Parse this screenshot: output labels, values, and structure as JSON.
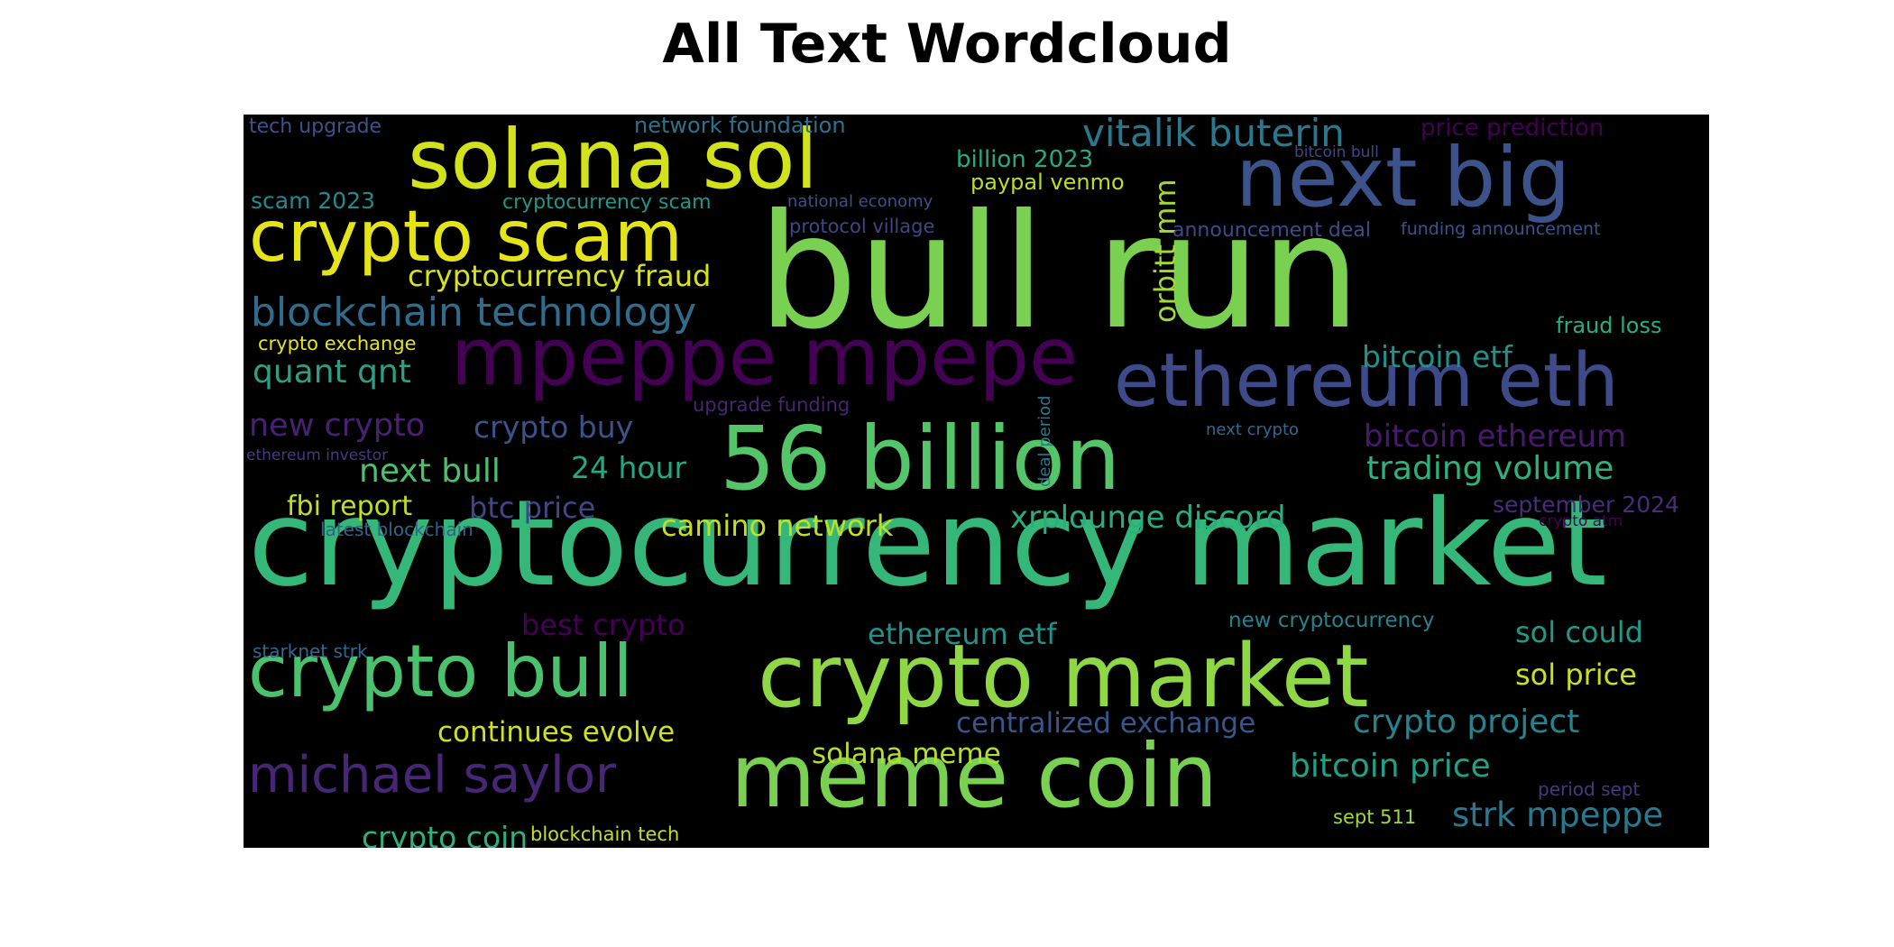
{
  "title": "All Text Wordcloud",
  "chart_data": {
    "type": "wordcloud",
    "title": "All Text Wordcloud",
    "background": "#000000",
    "colormap": "viridis",
    "words": [
      {
        "text": "cryptocurrency market",
        "weight": 100,
        "color": "#35b779"
      },
      {
        "text": "bull run",
        "weight": 96,
        "color": "#7ad151"
      },
      {
        "text": "crypto market",
        "weight": 72,
        "color": "#8fd744"
      },
      {
        "text": "meme coin",
        "weight": 70,
        "color": "#7ad151"
      },
      {
        "text": "56 billion",
        "weight": 68,
        "color": "#54c568"
      },
      {
        "text": "solana sol",
        "weight": 64,
        "color": "#d2e21b"
      },
      {
        "text": "next big",
        "weight": 63,
        "color": "#3b528b"
      },
      {
        "text": "mpeppe mpepe",
        "weight": 62,
        "color": "#440154"
      },
      {
        "text": "ethereum eth",
        "weight": 61,
        "color": "#3e4a89"
      },
      {
        "text": "crypto bull",
        "weight": 58,
        "color": "#4ac16d"
      },
      {
        "text": "crypto scam",
        "weight": 56,
        "color": "#e5e419"
      },
      {
        "text": "michael saylor",
        "weight": 44,
        "color": "#482677"
      },
      {
        "text": "blockchain technology",
        "weight": 34,
        "color": "#2f6c8e"
      },
      {
        "text": "vitalik buterin",
        "weight": 32,
        "color": "#2a788e"
      },
      {
        "text": "orbitt mm",
        "weight": 30,
        "color": "#a0da39"
      },
      {
        "text": "trading volume",
        "weight": 30,
        "color": "#2db27d"
      },
      {
        "text": "quant qnt",
        "weight": 30,
        "color": "#2e9f82"
      },
      {
        "text": "bitcoin price",
        "weight": 30,
        "color": "#1fa088"
      },
      {
        "text": "next bull",
        "weight": 30,
        "color": "#4ac16d"
      },
      {
        "text": "crypto project",
        "weight": 30,
        "color": "#25838e"
      },
      {
        "text": "bitcoin etf",
        "weight": 28,
        "color": "#21918c"
      },
      {
        "text": "xrplounge discord",
        "weight": 28,
        "color": "#29af7f"
      },
      {
        "text": "bitcoin ethereum",
        "weight": 28,
        "color": "#481a6c"
      },
      {
        "text": "new crypto",
        "weight": 28,
        "color": "#482173"
      },
      {
        "text": "crypto buy",
        "weight": 28,
        "color": "#3b528b"
      },
      {
        "text": "24 hour",
        "weight": 28,
        "color": "#22a884"
      },
      {
        "text": "crypto coin",
        "weight": 28,
        "color": "#2db27d"
      },
      {
        "text": "camino network",
        "weight": 28,
        "color": "#c2df23"
      },
      {
        "text": "sol could",
        "weight": 28,
        "color": "#1f9a8a"
      },
      {
        "text": "sol price",
        "weight": 28,
        "color": "#c8e020"
      },
      {
        "text": "strk mpeppe",
        "weight": 28,
        "color": "#2a788e"
      },
      {
        "text": "ethereum etf",
        "weight": 27,
        "color": "#21918c"
      },
      {
        "text": "crypto exchange",
        "weight": 18,
        "color": "#e5e419"
      },
      {
        "text": "cryptocurrency fraud",
        "weight": 27,
        "color": "#d8e219"
      },
      {
        "text": "best crypto",
        "weight": 27,
        "color": "#440154"
      },
      {
        "text": "btc price",
        "weight": 27,
        "color": "#404688"
      },
      {
        "text": "fbi report",
        "weight": 27,
        "color": "#bddf26"
      },
      {
        "text": "solana meme",
        "weight": 27,
        "color": "#b5de2b"
      },
      {
        "text": "continues evolve",
        "weight": 27,
        "color": "#d0e11c"
      },
      {
        "text": "centralized exchange",
        "weight": 27,
        "color": "#39568c"
      },
      {
        "text": "price prediction",
        "weight": 22,
        "color": "#440154"
      },
      {
        "text": "billion 2023",
        "weight": 21,
        "color": "#25ab82"
      },
      {
        "text": "paypal venmo",
        "weight": 21,
        "color": "#b8de29"
      },
      {
        "text": "scam 2023",
        "weight": 20,
        "color": "#238a8d"
      },
      {
        "text": "network foundation",
        "weight": 19,
        "color": "#2c728e"
      },
      {
        "text": "tech upgrade",
        "weight": 18,
        "color": "#3b528b"
      },
      {
        "text": "fraud loss",
        "weight": 20,
        "color": "#29af7f"
      },
      {
        "text": "announcement deal",
        "weight": 19,
        "color": "#3e4a89"
      },
      {
        "text": "new cryptocurrency",
        "weight": 19,
        "color": "#26828e"
      },
      {
        "text": "september 2024",
        "weight": 20,
        "color": "#472d7b"
      },
      {
        "text": "cryptocurrency scam",
        "weight": 18,
        "color": "#1f968b"
      },
      {
        "text": "protocol village",
        "weight": 17,
        "color": "#414487"
      },
      {
        "text": "funding announcement",
        "weight": 16,
        "color": "#3b528b"
      },
      {
        "text": "upgrade funding",
        "weight": 18,
        "color": "#482475"
      },
      {
        "text": "blockchain tech",
        "weight": 18,
        "color": "#bddf26"
      },
      {
        "text": "sept 511",
        "weight": 18,
        "color": "#9fda3a"
      },
      {
        "text": "starknet strk",
        "weight": 16,
        "color": "#31688e"
      },
      {
        "text": "latest blockchain",
        "weight": 16,
        "color": "#33638d"
      },
      {
        "text": "period sept",
        "weight": 16,
        "color": "#443983"
      },
      {
        "text": "national economy",
        "weight": 15,
        "color": "#3b528b"
      },
      {
        "text": "deal period",
        "weight": 15,
        "color": "#2a788e"
      },
      {
        "text": "next crypto",
        "weight": 14,
        "color": "#31688e"
      },
      {
        "text": "ethereum investor",
        "weight": 14,
        "color": "#443983"
      },
      {
        "text": "crypto atm",
        "weight": 13,
        "color": "#440154"
      },
      {
        "text": "bitcoin bull",
        "weight": 13,
        "color": "#414487"
      }
    ]
  }
}
